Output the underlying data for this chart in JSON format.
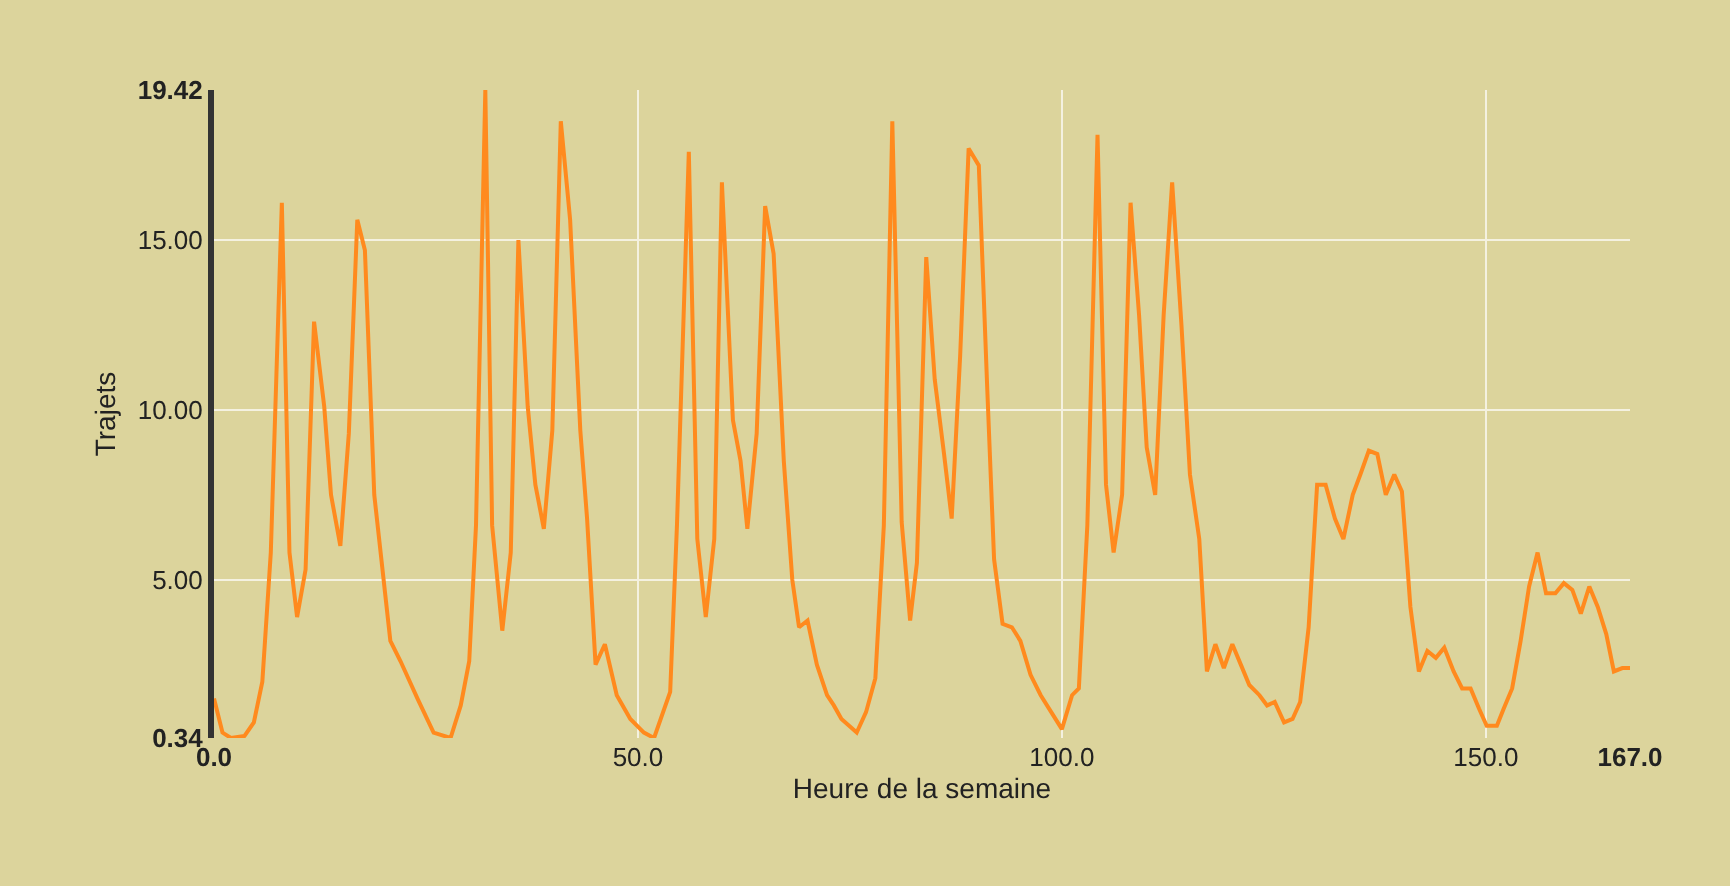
{
  "chart_data": {
    "type": "line",
    "xlabel": "Heure de la semaine",
    "ylabel": "Trajets",
    "x": [
      0,
      1,
      2,
      3.6,
      4.7,
      5.7,
      6.7,
      8,
      8.9,
      9.8,
      10.8,
      11.8,
      13,
      13.8,
      14.9,
      15.9,
      16.9,
      17.8,
      18.9,
      20.8,
      22,
      24,
      25.9,
      27.9,
      29.1,
      30.1,
      30.9,
      32,
      32.8,
      34,
      35,
      35.9,
      37,
      37.9,
      38.9,
      39.9,
      40.9,
      42,
      43.2,
      44,
      45,
      46.1,
      47.5,
      49.1,
      50.7,
      51.9,
      53.8,
      54.6,
      56,
      57,
      58,
      59,
      59.9,
      61.2,
      62.1,
      62.9,
      64,
      65,
      66,
      67.2,
      68.2,
      69,
      70,
      71.1,
      72.3,
      73.1,
      74,
      75.8,
      76.9,
      78,
      79,
      80,
      81.1,
      82.1,
      82.9,
      84,
      85,
      86.1,
      87,
      88,
      89,
      90.2,
      91.2,
      92,
      93,
      94.1,
      95.1,
      96.3,
      97.5,
      99,
      100,
      101.2,
      102,
      103,
      104.2,
      105.2,
      106.1,
      107.1,
      108.1,
      109.1,
      110,
      111,
      112,
      113,
      114.1,
      115.1,
      116.2,
      117.1,
      118.1,
      119.1,
      120.1,
      121.1,
      122.1,
      123.3,
      124.2,
      125.1,
      126.2,
      127.2,
      128.1,
      129.1,
      130.1,
      131.1,
      132.2,
      133.2,
      134.3,
      135.2,
      136.2,
      137.2,
      138.2,
      139.2,
      140.1,
      141.1,
      142.1,
      143.1,
      144.1,
      145.1,
      146.2,
      147.2,
      148.2,
      149.2,
      150.1,
      151.3,
      152.1,
      153.1,
      154.1,
      155.1,
      156.1,
      157.1,
      158.2,
      159.2,
      160.2,
      161.2,
      162.2,
      163.2,
      164.2,
      165.1,
      166.1,
      167
    ],
    "series": [
      {
        "color": "#ff8a1e",
        "values": [
          1.5,
          0.5,
          0.34,
          0.4,
          0.8,
          2,
          5.8,
          16.1,
          5.8,
          3.9,
          5.3,
          12.6,
          10.1,
          7.5,
          6,
          9.3,
          15.6,
          14.7,
          7.5,
          3.2,
          2.6,
          1.5,
          0.5,
          0.34,
          1.3,
          2.6,
          6.6,
          19.42,
          6.6,
          3.5,
          5.8,
          15,
          10.1,
          7.8,
          6.5,
          9.4,
          18.5,
          15.6,
          9.4,
          6.8,
          2.5,
          3.1,
          1.6,
          0.9,
          0.5,
          0.34,
          1.7,
          6.6,
          17.6,
          6.2,
          3.9,
          6.2,
          16.7,
          9.7,
          8.5,
          6.5,
          9.3,
          16,
          14.6,
          8.5,
          5,
          3.6,
          3.8,
          2.5,
          1.6,
          1.3,
          0.9,
          0.5,
          1.1,
          2.1,
          6.6,
          18.5,
          6.7,
          3.8,
          5.5,
          14.5,
          10.9,
          8.7,
          6.8,
          11.6,
          17.7,
          17.2,
          10.6,
          5.6,
          3.7,
          3.6,
          3.2,
          2.2,
          1.6,
          1,
          0.6,
          1.6,
          1.8,
          6.6,
          18.1,
          7.8,
          5.8,
          7.5,
          16.1,
          12.8,
          8.9,
          7.5,
          12.8,
          16.7,
          12.5,
          8.1,
          6.2,
          2.3,
          3.1,
          2.4,
          3.1,
          2.5,
          1.9,
          1.6,
          1.3,
          1.4,
          0.8,
          0.9,
          1.4,
          3.6,
          7.8,
          7.8,
          6.8,
          6.2,
          7.5,
          8.1,
          8.8,
          8.7,
          7.5,
          8.1,
          7.6,
          4.2,
          2.3,
          2.9,
          2.7,
          3,
          2.3,
          1.8,
          1.8,
          1.2,
          0.7,
          0.7,
          1.2,
          1.8,
          3.2,
          4.8,
          5.8,
          4.6,
          4.6,
          4.9,
          4.7,
          4,
          4.8,
          4.2,
          3.4,
          2.3,
          2.4,
          2.4
        ]
      }
    ],
    "xlim": [
      0,
      167
    ],
    "ylim": [
      0.34,
      19.42
    ],
    "xticks": [
      {
        "value": 0,
        "label": "0.0"
      },
      {
        "value": 50,
        "label": "50.0"
      },
      {
        "value": 100,
        "label": "100.0"
      },
      {
        "value": 150,
        "label": "150.0"
      },
      {
        "value": 167,
        "label": "167.0"
      }
    ],
    "yticks": [
      0.34,
      {
        "value": 5,
        "label": "5.00"
      },
      {
        "value": 10,
        "label": "10.00"
      },
      {
        "value": 15,
        "label": "15.00"
      },
      19.42
    ],
    "grid": true,
    "marker": "none",
    "line_style": "solid"
  }
}
